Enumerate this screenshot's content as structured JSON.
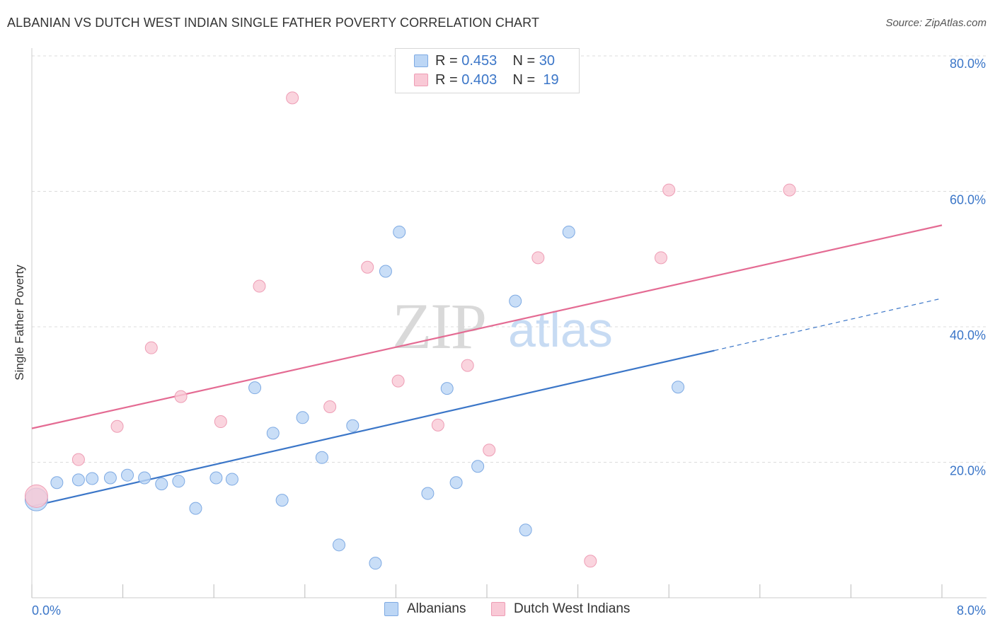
{
  "header": {
    "title": "ALBANIAN VS DUTCH WEST INDIAN SINGLE FATHER POVERTY CORRELATION CHART",
    "source": "Source: ZipAtlas.com"
  },
  "legend": {
    "rows": [
      {
        "r_label": "R =",
        "r_value": "0.453",
        "n_label": "N =",
        "n_value": "30",
        "color": "#a9c8f2"
      },
      {
        "r_label": "R =",
        "r_value": "0.403",
        "n_label": "N =",
        "n_value": "19",
        "color": "#f6b6c8"
      }
    ]
  },
  "watermark": {
    "zip": "ZIP",
    "atlas": "atlas"
  },
  "chart_data": {
    "type": "scatter",
    "title": "ALBANIAN VS DUTCH WEST INDIAN SINGLE FATHER POVERTY CORRELATION CHART",
    "xlabel": "",
    "ylabel": "Single Father Poverty",
    "xlim": [
      0,
      8
    ],
    "ylim": [
      0,
      80
    ],
    "x_tick_labels": [
      "0.0%",
      "8.0%"
    ],
    "y_tick_labels": [
      "20.0%",
      "40.0%",
      "60.0%",
      "80.0%"
    ],
    "y_ticks": [
      20,
      40,
      60,
      80
    ],
    "grid": "horizontal dashed",
    "legend_position": "top-center",
    "colors": {
      "albanians": "#3b76c8",
      "dutch": "#e46b93",
      "tick_text": "#3b76c8"
    },
    "series": [
      {
        "name": "Albanians",
        "point_fill": "#bcd6f5",
        "point_stroke": "#7eaae3",
        "points": [
          [
            0.04,
            14.5
          ],
          [
            0.22,
            17.0
          ],
          [
            0.41,
            17.4
          ],
          [
            0.53,
            17.6
          ],
          [
            0.69,
            17.7
          ],
          [
            0.84,
            18.1
          ],
          [
            0.99,
            17.7
          ],
          [
            1.14,
            16.8
          ],
          [
            1.29,
            17.2
          ],
          [
            1.44,
            13.2
          ],
          [
            1.62,
            17.7
          ],
          [
            1.76,
            17.5
          ],
          [
            1.96,
            31.0
          ],
          [
            2.12,
            24.3
          ],
          [
            2.2,
            14.4
          ],
          [
            2.38,
            26.6
          ],
          [
            2.55,
            20.7
          ],
          [
            2.7,
            7.8
          ],
          [
            2.82,
            25.4
          ],
          [
            3.02,
            5.1
          ],
          [
            3.11,
            48.2
          ],
          [
            3.23,
            54.0
          ],
          [
            3.48,
            15.4
          ],
          [
            3.65,
            30.9
          ],
          [
            3.73,
            17.0
          ],
          [
            3.92,
            19.4
          ],
          [
            4.25,
            43.8
          ],
          [
            4.34,
            10.0
          ],
          [
            4.72,
            54.0
          ],
          [
            5.68,
            31.1
          ]
        ],
        "trend": {
          "x0": 0.0,
          "y0": 13.5,
          "x1": 6.0,
          "y1": 36.5,
          "dash_to_x": 8.0,
          "dash_to_y": 44.2
        }
      },
      {
        "name": "Dutch West Indians",
        "point_fill": "#f9c9d6",
        "point_stroke": "#ee9db5",
        "points": [
          [
            0.04,
            15.0
          ],
          [
            0.41,
            20.4
          ],
          [
            0.75,
            25.3
          ],
          [
            1.05,
            36.9
          ],
          [
            1.31,
            29.7
          ],
          [
            1.66,
            26.0
          ],
          [
            2.0,
            46.0
          ],
          [
            2.29,
            73.8
          ],
          [
            2.62,
            28.2
          ],
          [
            2.95,
            48.8
          ],
          [
            3.22,
            32.0
          ],
          [
            3.57,
            25.5
          ],
          [
            3.83,
            34.3
          ],
          [
            4.02,
            21.8
          ],
          [
            4.45,
            50.2
          ],
          [
            4.91,
            5.4
          ],
          [
            5.53,
            50.2
          ],
          [
            5.6,
            60.2
          ],
          [
            6.66,
            60.2
          ]
        ],
        "trend": {
          "x0": 0.0,
          "y0": 25.0,
          "x1": 8.0,
          "y1": 55.0
        }
      }
    ]
  },
  "bottom_legend": {
    "items": [
      {
        "label": "Albanians",
        "color": "#bcd6f5",
        "border": "#7eaae3"
      },
      {
        "label": "Dutch West Indians",
        "color": "#f9c9d6",
        "border": "#ee9db5"
      }
    ]
  }
}
